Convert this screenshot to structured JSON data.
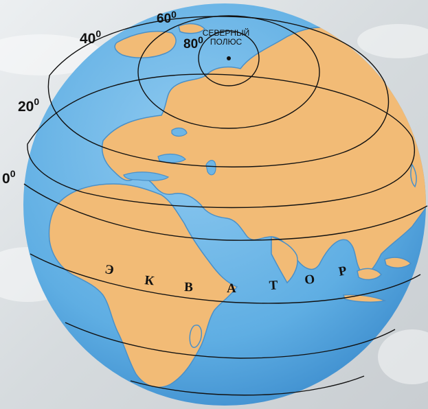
{
  "map": {
    "latitudes": [
      {
        "value": "0",
        "unit": "0"
      },
      {
        "value": "20",
        "unit": "0"
      },
      {
        "value": "40",
        "unit": "0"
      },
      {
        "value": "60",
        "unit": "0"
      },
      {
        "value": "80",
        "unit": "0"
      }
    ],
    "north_pole": {
      "line1": "СЕВЕРНЫЙ",
      "line2": "ПОЛЮС"
    },
    "equator_label": [
      "Э",
      "К",
      "В",
      "А",
      "Т",
      "О",
      "Р"
    ]
  },
  "colors": {
    "ocean": "#6eb6e6",
    "land": "#f2bb76",
    "coast": "#4a90c8",
    "lines": "#111111",
    "sky": "#dfe3e6"
  }
}
